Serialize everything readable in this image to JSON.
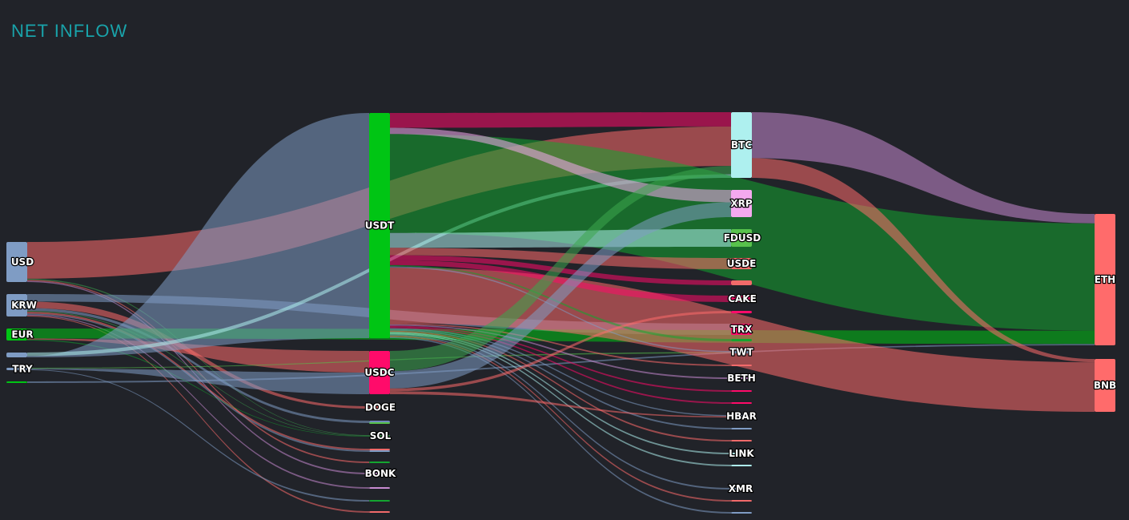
{
  "title": "NET INFLOW",
  "colors": {
    "background": "#212329",
    "title": "#19a3aa"
  },
  "nodes": [
    {
      "id": "USD",
      "label": "USD",
      "color": "#7f9cc4"
    },
    {
      "id": "KRW",
      "label": "KRW",
      "color": "#7f9cc4"
    },
    {
      "id": "EUR",
      "label": "EUR",
      "color": "#00c514"
    },
    {
      "id": "GBP",
      "label": "",
      "color": "#7f9cc4"
    },
    {
      "id": "TRY",
      "label": "TRY",
      "color": "#7f9cc4"
    },
    {
      "id": "BRL",
      "label": "",
      "color": "#00c514"
    },
    {
      "id": "USDT",
      "label": "USDT",
      "color": "#00c514"
    },
    {
      "id": "USDC",
      "label": "USDC",
      "color": "#ff0b6a"
    },
    {
      "id": "DOGE",
      "label": "DOGE",
      "color": "#f26a6a"
    },
    {
      "id": "M1",
      "label": "",
      "color": "#6f89bd"
    },
    {
      "id": "M2",
      "label": "",
      "color": "#58c24c"
    },
    {
      "id": "SOL",
      "label": "SOL",
      "color": "#3da64e"
    },
    {
      "id": "M3",
      "label": "",
      "color": "#f26a6a"
    },
    {
      "id": "M4",
      "label": "",
      "color": "#7f9cc4"
    },
    {
      "id": "M5",
      "label": "",
      "color": "#14a530"
    },
    {
      "id": "BONK",
      "label": "BONK",
      "color": "#c88bd1"
    },
    {
      "id": "M6",
      "label": "",
      "color": "#c88bd1"
    },
    {
      "id": "M7",
      "label": "",
      "color": "#14a530"
    },
    {
      "id": "M8",
      "label": "",
      "color": "#f26a6a"
    },
    {
      "id": "BTC",
      "label": "BTC",
      "color": "#aef0ef"
    },
    {
      "id": "XRP",
      "label": "XRP",
      "color": "#f4a9ef"
    },
    {
      "id": "FDUSD",
      "label": "FDUSD",
      "color": "#58c24c"
    },
    {
      "id": "USDE",
      "label": "USDE",
      "color": "#f26a6a"
    },
    {
      "id": "R1",
      "label": "",
      "color": "#f26a6a"
    },
    {
      "id": "CAKE",
      "label": "CAKE",
      "color": "#ff0b6a"
    },
    {
      "id": "R2",
      "label": "",
      "color": "#ff0b6a"
    },
    {
      "id": "TRX",
      "label": "TRX",
      "color": "#ff0b6a"
    },
    {
      "id": "R3",
      "label": "",
      "color": "#14a530"
    },
    {
      "id": "TWT",
      "label": "TWT",
      "color": "#7f9cc4"
    },
    {
      "id": "R4",
      "label": "",
      "color": "#f26a6a"
    },
    {
      "id": "BETH",
      "label": "BETH",
      "color": "#c88bd1"
    },
    {
      "id": "R5",
      "label": "",
      "color": "#ff0b6a"
    },
    {
      "id": "R6",
      "label": "",
      "color": "#ff0b6a"
    },
    {
      "id": "HBAR",
      "label": "HBAR",
      "color": "#7f9cc4"
    },
    {
      "id": "R7",
      "label": "",
      "color": "#7f9cc4"
    },
    {
      "id": "R8",
      "label": "",
      "color": "#f26a6a"
    },
    {
      "id": "LINK",
      "label": "LINK",
      "color": "#aef0ef"
    },
    {
      "id": "R9",
      "label": "",
      "color": "#aef0ef"
    },
    {
      "id": "XMR",
      "label": "XMR",
      "color": "#7f9cc4"
    },
    {
      "id": "R10",
      "label": "",
      "color": "#f26a6a"
    },
    {
      "id": "R11",
      "label": "",
      "color": "#7f9cc4"
    },
    {
      "id": "ETH",
      "label": "ETH",
      "color": "#ff6b6b"
    },
    {
      "id": "BNB",
      "label": "BNB",
      "color": "#ff6b6b"
    }
  ],
  "links": [
    {
      "source": "USD",
      "target": "BTC",
      "value": 33,
      "color": "#ff6b6b"
    },
    {
      "source": "USD",
      "target": "SOL",
      "value": 1,
      "color": "#3da64e"
    },
    {
      "source": "USD",
      "target": "BONK",
      "value": 1,
      "color": "#c88bd1"
    },
    {
      "source": "USD",
      "target": "M5",
      "value": 1,
      "color": "#ff6b6b"
    },
    {
      "source": "KRW",
      "target": "DOGE",
      "value": 7,
      "color": "#ff6b6b"
    },
    {
      "source": "KRW",
      "target": "M1",
      "value": 3,
      "color": "#7f9cc4"
    },
    {
      "source": "KRW",
      "target": "M3",
      "value": 2,
      "color": "#ff6b6b"
    },
    {
      "source": "KRW",
      "target": "TRX",
      "value": 8,
      "color": "#7f9cc4"
    },
    {
      "source": "KRW",
      "target": "SOL",
      "value": 1,
      "color": "#3da64e"
    },
    {
      "source": "KRW",
      "target": "M4",
      "value": 1,
      "color": "#7f9cc4"
    },
    {
      "source": "KRW",
      "target": "M6",
      "value": 1,
      "color": "#c88bd1"
    },
    {
      "source": "KRW",
      "target": "M8",
      "value": 1,
      "color": "#ff6b6b"
    },
    {
      "source": "EUR",
      "target": "ETH",
      "value": 10,
      "color": "#00c514"
    },
    {
      "source": "EUR",
      "target": "SOL",
      "value": 1,
      "color": "#14a530"
    },
    {
      "source": "EUR",
      "target": "USDC",
      "value": 1,
      "color": "#ff6b6b"
    },
    {
      "source": "GBP",
      "target": "USDT",
      "value": 1,
      "color": "#7f9cc4"
    },
    {
      "source": "GBP",
      "target": "BTC",
      "value": 3,
      "color": "#aef0ef"
    },
    {
      "source": "TRY",
      "target": "M7",
      "value": 1,
      "color": "#7f9cc4"
    },
    {
      "source": "TRY",
      "target": "TWT",
      "value": 1,
      "color": "#58c24c"
    },
    {
      "source": "TRY",
      "target": "USDC",
      "value": 1,
      "color": "#7f9cc4"
    },
    {
      "source": "BRL",
      "target": "ETH",
      "value": 1,
      "color": "#7f9cc4"
    },
    {
      "source": "USDT",
      "target": "ETH",
      "value": 80,
      "color": "#14a530"
    },
    {
      "source": "USDT",
      "target": "BNB",
      "value": 45,
      "color": "#ff6b6b"
    },
    {
      "source": "USDT",
      "target": "FDUSD",
      "value": 12,
      "color": "#aef0ef"
    },
    {
      "source": "USDT",
      "target": "BTC",
      "value": 12,
      "color": "#ff0b6a"
    },
    {
      "source": "USDT",
      "target": "USDE",
      "value": 6,
      "color": "#ff6b6b"
    },
    {
      "source": "USDT",
      "target": "R1",
      "value": 4,
      "color": "#ff0b6a"
    },
    {
      "source": "USDT",
      "target": "CAKE",
      "value": 4,
      "color": "#ff0b6a"
    },
    {
      "source": "USDT",
      "target": "XRP",
      "value": 5,
      "color": "#f4a9ef"
    },
    {
      "source": "USDT",
      "target": "TWT",
      "value": 1,
      "color": "#7f9cc4"
    },
    {
      "source": "USDT",
      "target": "R3",
      "value": 1,
      "color": "#14a530"
    },
    {
      "source": "USDT",
      "target": "BETH",
      "value": 1,
      "color": "#c88bd1"
    },
    {
      "source": "USDT",
      "target": "R4",
      "value": 1,
      "color": "#ff6b6b"
    },
    {
      "source": "USDT",
      "target": "R5",
      "value": 1,
      "color": "#ff0b6a"
    },
    {
      "source": "USDT",
      "target": "R6",
      "value": 1,
      "color": "#ff0b6a"
    },
    {
      "source": "USDT",
      "target": "HBAR",
      "value": 1,
      "color": "#7f9cc4"
    },
    {
      "source": "USDT",
      "target": "R7",
      "value": 1,
      "color": "#7f9cc4"
    },
    {
      "source": "USDT",
      "target": "R8",
      "value": 1,
      "color": "#ff6b6b"
    },
    {
      "source": "USDT",
      "target": "LINK",
      "value": 1,
      "color": "#aef0ef"
    },
    {
      "source": "USDT",
      "target": "R9",
      "value": 1,
      "color": "#aef0ef"
    },
    {
      "source": "USDT",
      "target": "XMR",
      "value": 1,
      "color": "#7f9cc4"
    },
    {
      "source": "USDT",
      "target": "R10",
      "value": 1,
      "color": "#ff6b6b"
    },
    {
      "source": "USDT",
      "target": "R11",
      "value": 1,
      "color": "#7f9cc4"
    },
    {
      "source": "USDC",
      "target": "BTC",
      "value": 7,
      "color": "#3da64e"
    },
    {
      "source": "USDC",
      "target": "XRP",
      "value": 6,
      "color": "#7f9cc4"
    },
    {
      "source": "USDC",
      "target": "R2",
      "value": 1,
      "color": "#ff6b6b"
    },
    {
      "source": "USDC",
      "target": "HBAR",
      "value": 1,
      "color": "#ff6b6b"
    },
    {
      "source": "BTC",
      "target": "ETH",
      "value": 7,
      "color": "#c88bd1"
    },
    {
      "source": "BTC",
      "target": "BNB",
      "value": 3,
      "color": "#ff6b6b"
    }
  ]
}
